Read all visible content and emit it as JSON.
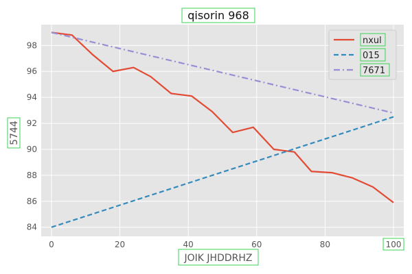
{
  "chart_data": {
    "type": "line",
    "title": "qisorin 968",
    "xlabel": "JOIK JHDDRHZ",
    "ylabel": "5744",
    "xlim": [
      -3,
      103
    ],
    "ylim": [
      83.3,
      99.6
    ],
    "x_ticks": [
      0,
      20,
      40,
      60,
      80,
      100
    ],
    "y_ticks": [
      84,
      86,
      88,
      90,
      92,
      94,
      96,
      98
    ],
    "grid": true,
    "legend_position": "top-right",
    "series": [
      {
        "name": "nxul",
        "color": "#e24a33",
        "style": "solid",
        "x": [
          0,
          6,
          12,
          18,
          24,
          29,
          35,
          41,
          47,
          53,
          59,
          65,
          71,
          76,
          82,
          88,
          94,
          100
        ],
        "y": [
          99.0,
          98.8,
          97.3,
          96.0,
          96.3,
          95.6,
          94.3,
          94.1,
          92.9,
          91.3,
          91.7,
          90.0,
          89.8,
          88.3,
          88.2,
          87.8,
          87.1,
          85.9
        ]
      },
      {
        "name": "015",
        "color": "#348abd",
        "style": "dashed",
        "x": [
          0,
          100
        ],
        "y": [
          84.0,
          92.5
        ]
      },
      {
        "name": "7671",
        "color": "#988ed5",
        "style": "dashdot",
        "x": [
          0,
          100
        ],
        "y": [
          99.0,
          92.8
        ]
      }
    ]
  }
}
